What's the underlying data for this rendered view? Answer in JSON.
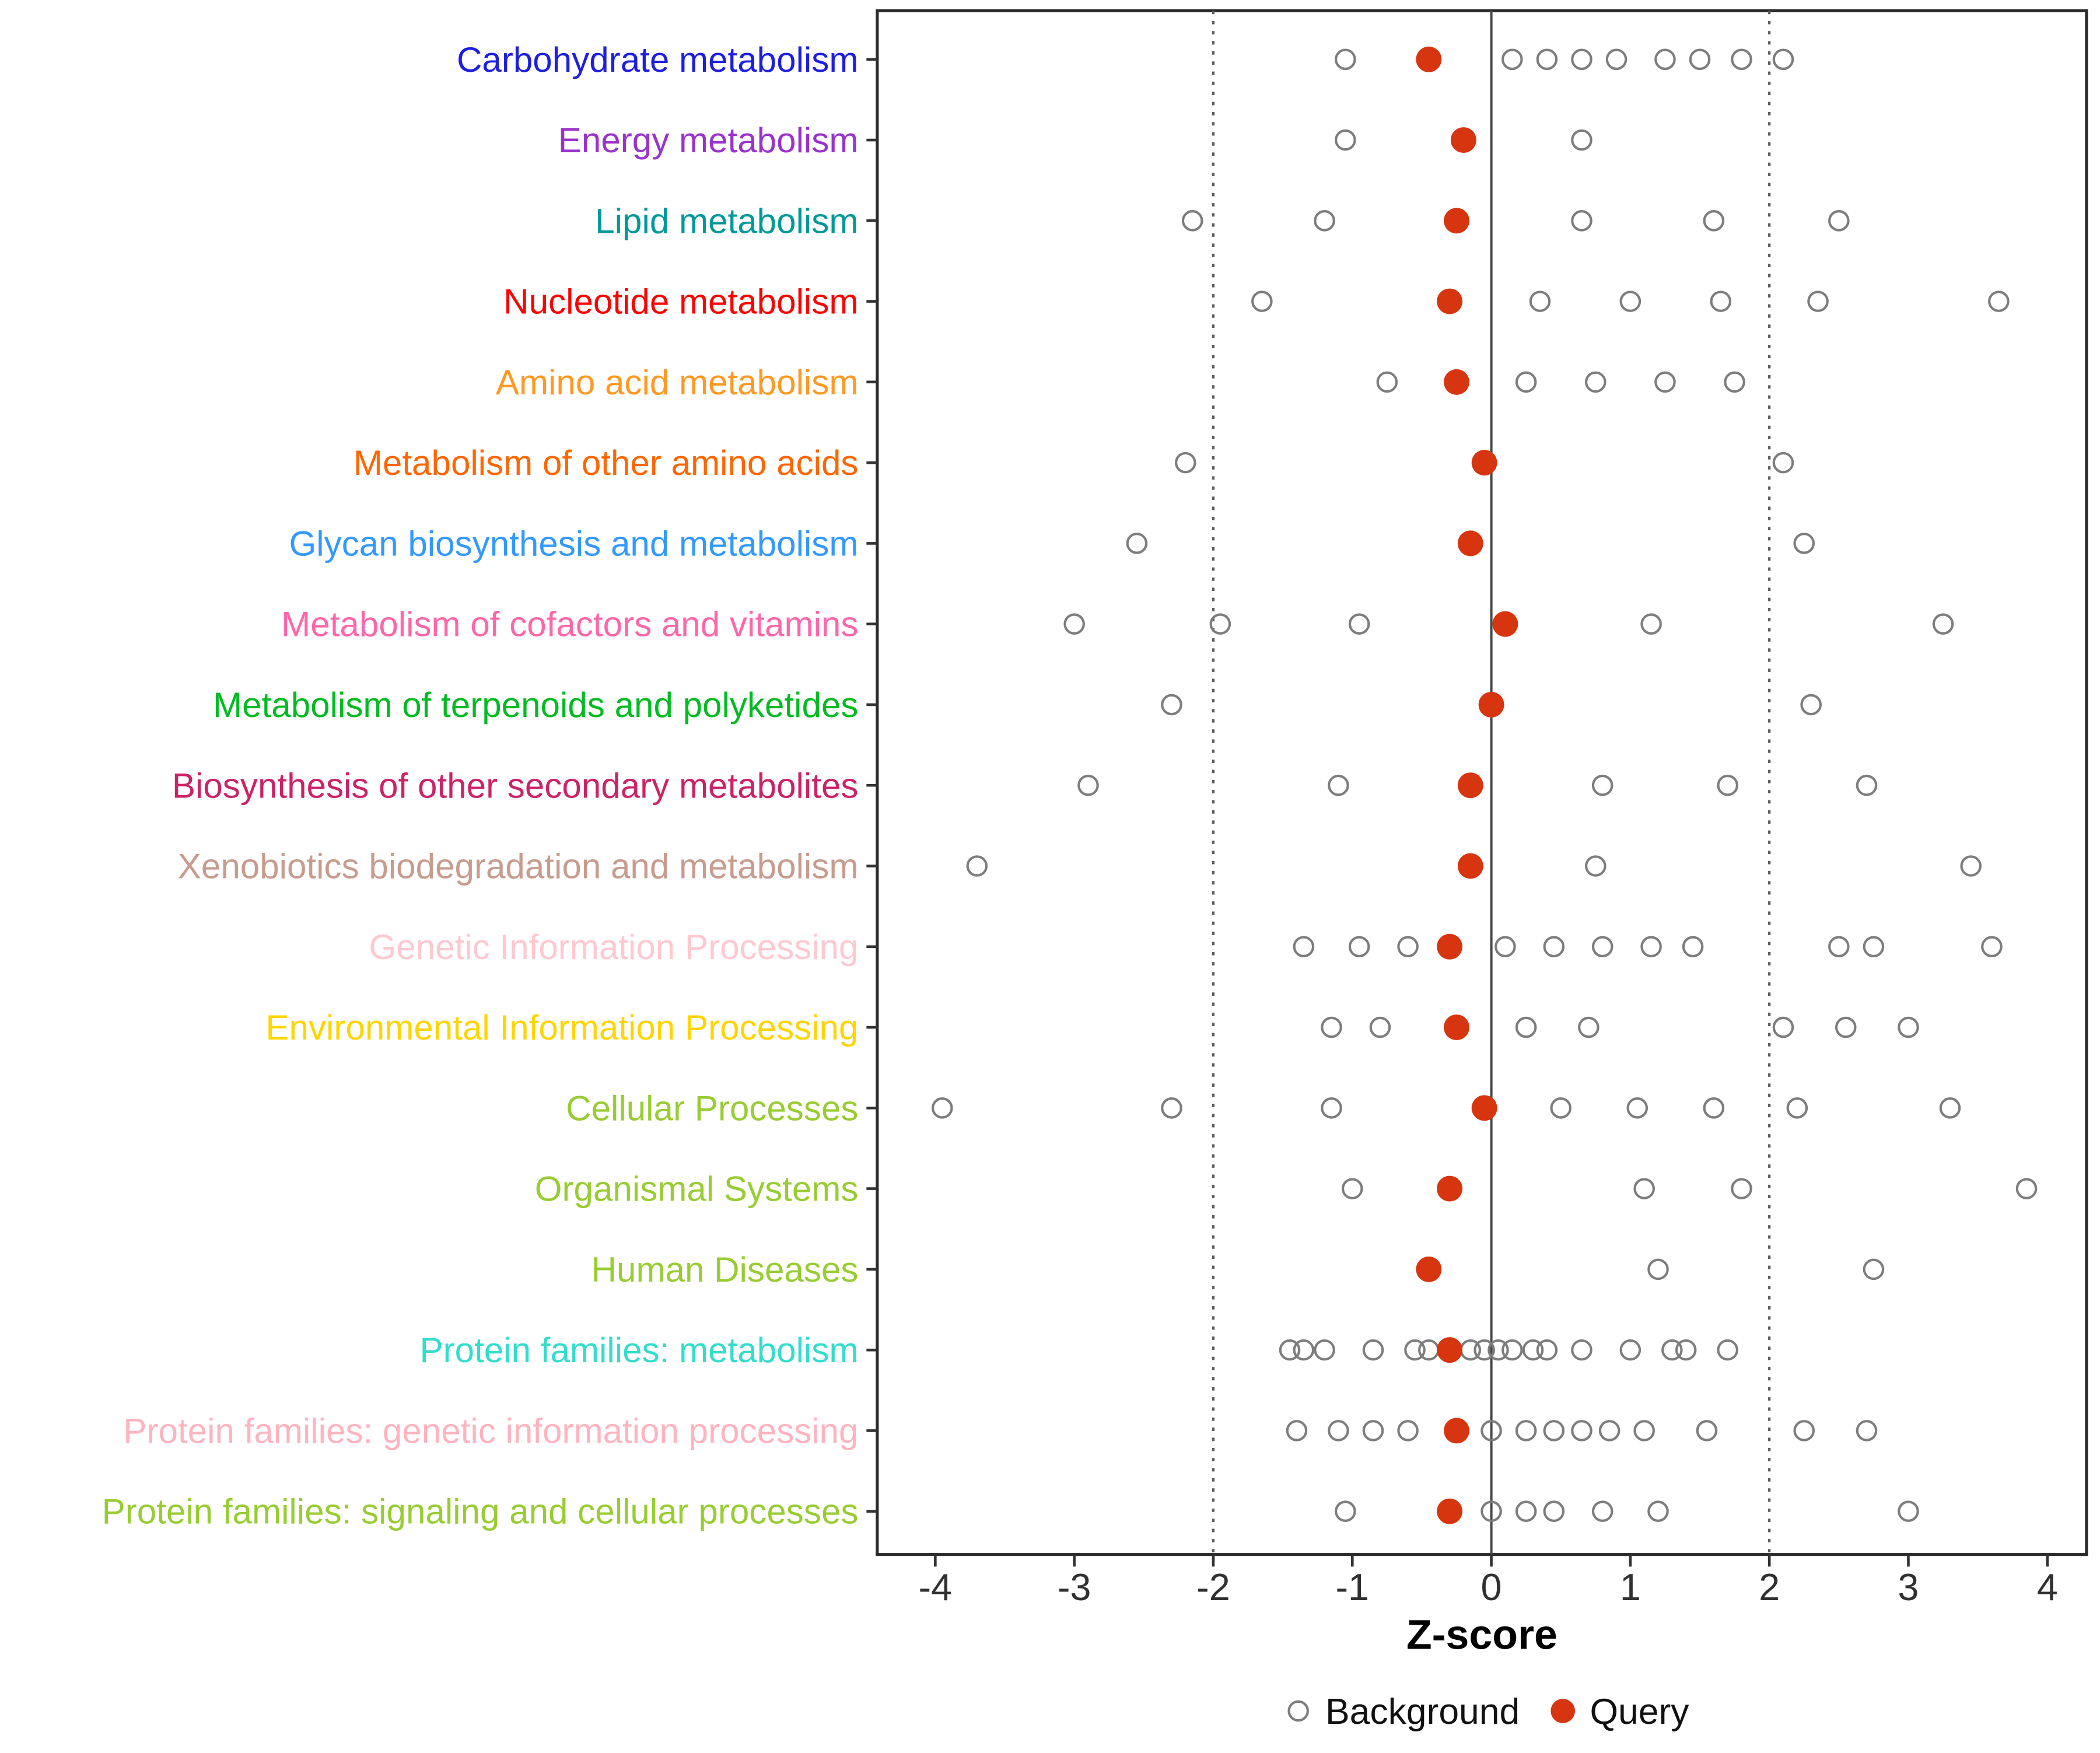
{
  "chart_data": {
    "type": "scatter",
    "title": "",
    "xlabel": "Z-score",
    "xlim": [
      -4.4,
      4.3
    ],
    "x_ticks": [
      -4,
      -3,
      -2,
      -1,
      0,
      1,
      2,
      3,
      4
    ],
    "vlines": {
      "dotted": [
        -2,
        2
      ],
      "solid": [
        0
      ]
    },
    "grid": "off",
    "legend_position": "bottom",
    "legend": [
      {
        "label": "Background",
        "marker": "open-circle",
        "color": "#7D7D7D"
      },
      {
        "label": "Query",
        "marker": "filled-circle",
        "color": "#D7350F"
      }
    ],
    "colors": {
      "background_stroke": "#7D7D7D",
      "query_fill": "#D7350F",
      "panel_border": "#2B2B2B",
      "ref_line": "#4A4A4A",
      "dotted_line": "#5A5A5A"
    },
    "categories": [
      {
        "label": "Carbohydrate metabolism",
        "color": "#1E1EE0",
        "background": [
          -1.05,
          0.15,
          0.4,
          0.65,
          0.9,
          1.25,
          1.5,
          1.8,
          2.1
        ],
        "query": -0.45
      },
      {
        "label": "Energy metabolism",
        "color": "#9933CC",
        "background": [
          -1.05,
          0.65
        ],
        "query": -0.2
      },
      {
        "label": "Lipid metabolism",
        "color": "#009999",
        "background": [
          -2.15,
          -1.2,
          0.65,
          1.6,
          2.5
        ],
        "query": -0.25
      },
      {
        "label": "Nucleotide metabolism",
        "color": "#FF0000",
        "background": [
          -1.65,
          0.35,
          1.0,
          1.65,
          2.35,
          3.65
        ],
        "query": -0.3
      },
      {
        "label": "Amino acid metabolism",
        "color": "#FF9922",
        "background": [
          -0.75,
          0.25,
          0.75,
          1.25,
          1.75
        ],
        "query": -0.25
      },
      {
        "label": "Metabolism of other amino acids",
        "color": "#FF6600",
        "background": [
          -2.2,
          2.1
        ],
        "query": -0.05
      },
      {
        "label": "Glycan biosynthesis and metabolism",
        "color": "#3399FF",
        "background": [
          -2.55,
          2.25
        ],
        "query": -0.15
      },
      {
        "label": "Metabolism of cofactors and vitamins",
        "color": "#FF66AA",
        "background": [
          -3.0,
          -1.95,
          -0.95,
          1.15,
          3.25
        ],
        "query": 0.1
      },
      {
        "label": "Metabolism of terpenoids and polyketides",
        "color": "#00BB22",
        "background": [
          -2.3,
          2.3
        ],
        "query": 0.0
      },
      {
        "label": "Biosynthesis of other secondary metabolites",
        "color": "#CC2266",
        "background": [
          -2.9,
          -1.1,
          0.8,
          1.7,
          2.7
        ],
        "query": -0.15
      },
      {
        "label": "Xenobiotics biodegradation and metabolism",
        "color": "#C79C8E",
        "background": [
          -3.7,
          0.75,
          3.45
        ],
        "query": -0.15
      },
      {
        "label": "Genetic Information Processing",
        "color": "#FFC8D0",
        "background": [
          -1.35,
          -0.95,
          -0.6,
          0.1,
          0.45,
          0.8,
          1.15,
          1.45,
          2.5,
          2.75,
          3.6
        ],
        "query": -0.3
      },
      {
        "label": "Environmental Information Processing",
        "color": "#FFD500",
        "background": [
          -1.15,
          -0.8,
          0.25,
          0.7,
          2.1,
          2.55,
          3.0
        ],
        "query": -0.25
      },
      {
        "label": "Cellular Processes",
        "color": "#99CC33",
        "background": [
          -3.95,
          -2.3,
          -1.15,
          0.5,
          1.05,
          1.6,
          2.2,
          3.3
        ],
        "query": -0.05
      },
      {
        "label": "Organismal Systems",
        "color": "#99CC33",
        "background": [
          -1.0,
          1.1,
          1.8,
          3.85
        ],
        "query": -0.3
      },
      {
        "label": "Human Diseases",
        "color": "#99CC33",
        "background": [
          1.2,
          2.75
        ],
        "query": -0.45
      },
      {
        "label": "Protein families: metabolism",
        "color": "#33DDCC",
        "background": [
          -1.45,
          -1.35,
          -1.2,
          -0.85,
          -0.55,
          -0.45,
          -0.15,
          -0.05,
          0.05,
          0.15,
          0.3,
          0.4,
          0.65,
          1.0,
          1.3,
          1.4,
          1.7
        ],
        "query": -0.3
      },
      {
        "label": "Protein families: genetic information processing",
        "color": "#FFB3C0",
        "background": [
          -1.4,
          -1.1,
          -0.85,
          -0.6,
          0.0,
          0.25,
          0.45,
          0.65,
          0.85,
          1.1,
          1.55,
          2.25,
          2.7
        ],
        "query": -0.25
      },
      {
        "label": "Protein families: signaling and cellular processes",
        "color": "#99CC33",
        "background": [
          -1.05,
          0.0,
          0.25,
          0.45,
          0.8,
          1.2,
          3.0
        ],
        "query": -0.3
      }
    ]
  }
}
